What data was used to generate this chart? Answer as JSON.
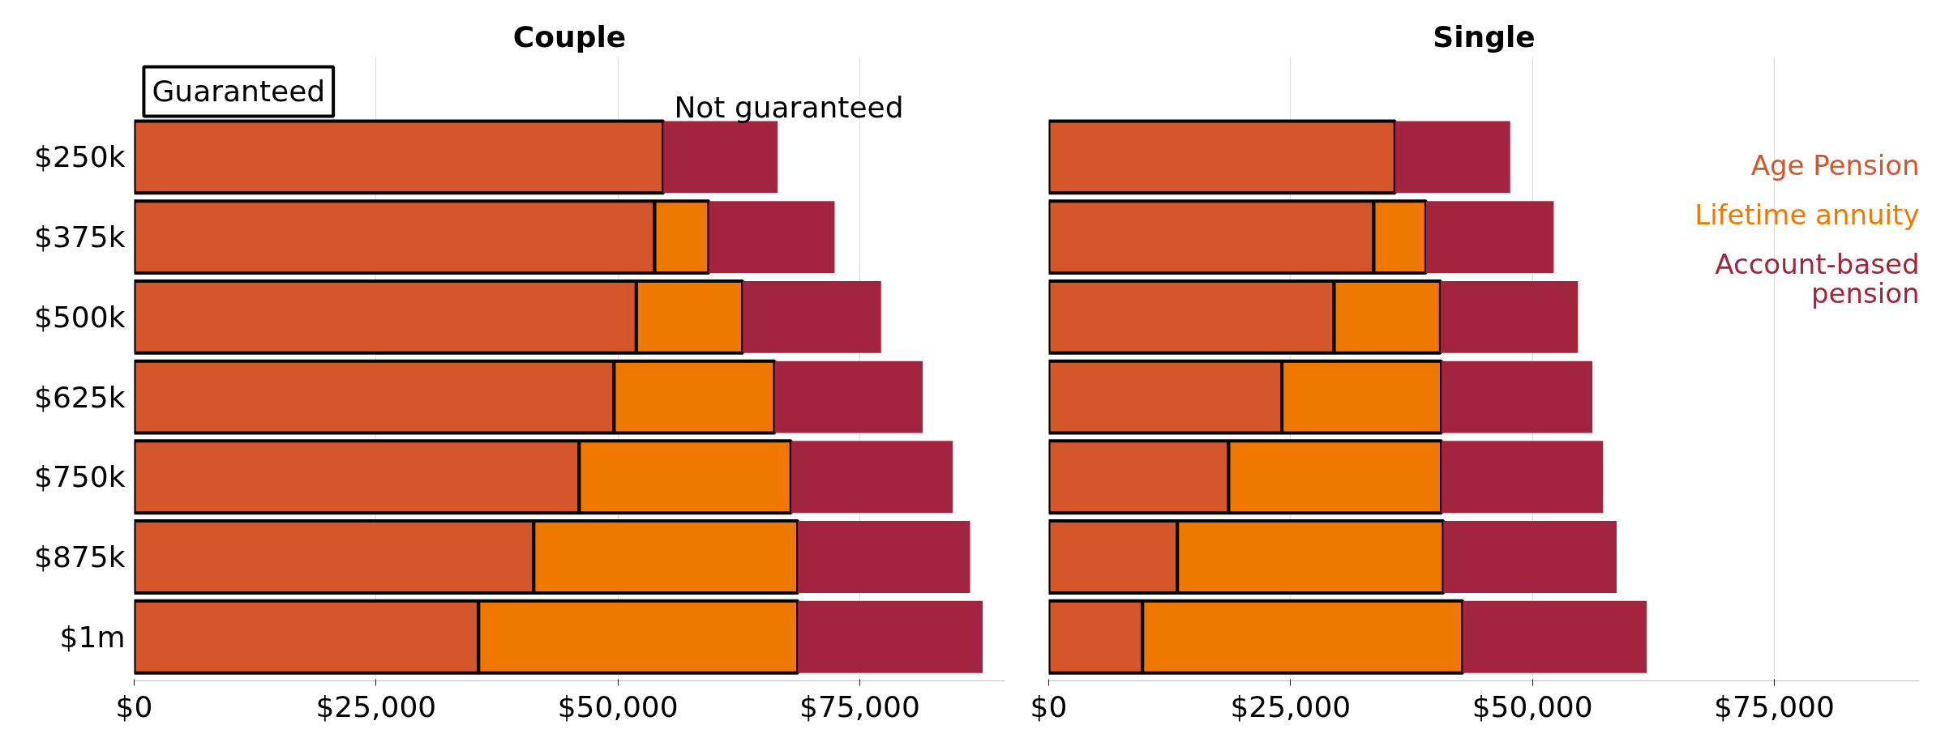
{
  "chart_data": [
    {
      "type": "bar",
      "orientation": "horizontal",
      "stacked": true,
      "title": "Couple",
      "categories": [
        "$250k",
        "$375k",
        "$500k",
        "$625k",
        "$750k",
        "$875k",
        "$1m"
      ],
      "series": [
        {
          "color": "#d4572c",
          "values": [
            54700,
            53800,
            51900,
            49600,
            46000,
            41300,
            35600
          ]
        },
        {
          "color": "#ef7800",
          "values": [
            0,
            5600,
            11000,
            16600,
            21900,
            27300,
            33000
          ]
        },
        {
          "color": "#a3243e",
          "values": [
            11800,
            13000,
            14300,
            15300,
            16700,
            17800,
            19100
          ]
        }
      ],
      "xlim": [
        0,
        90000
      ],
      "xticks": [
        {
          "value": 0,
          "label": "$0"
        },
        {
          "value": 25000,
          "label": "$25,000"
        },
        {
          "value": 50000,
          "label": "$50,000"
        },
        {
          "value": 75000,
          "label": "$75,000"
        }
      ],
      "grid": "x",
      "annotations": [
        "Guaranteed",
        "Not guaranteed"
      ]
    },
    {
      "type": "bar",
      "orientation": "horizontal",
      "stacked": true,
      "title": "Single",
      "categories": [
        null,
        null,
        null,
        null,
        null,
        null,
        null
      ],
      "series": [
        {
          "name": "Age Pension",
          "color": "#d4572c",
          "values": [
            35800,
            33600,
            29500,
            24100,
            18600,
            13300,
            9700
          ]
        },
        {
          "name": "Lifetime annuity",
          "color": "#ef7800",
          "values": [
            0,
            5400,
            11000,
            16500,
            22000,
            27500,
            33100
          ]
        },
        {
          "name": "Account-based pension",
          "color": "#a3243e",
          "values": [
            11900,
            13200,
            14200,
            15600,
            16700,
            17900,
            19000
          ]
        }
      ],
      "xlim": [
        0,
        90000
      ],
      "xticks": [
        {
          "value": 0,
          "label": "$0"
        },
        {
          "value": 25000,
          "label": "$25,000"
        },
        {
          "value": 50000,
          "label": "$50,000"
        },
        {
          "value": 75000,
          "label": "$75,000"
        }
      ],
      "grid": "x",
      "legend": "top right",
      "tick_labels": "x"
    }
  ]
}
